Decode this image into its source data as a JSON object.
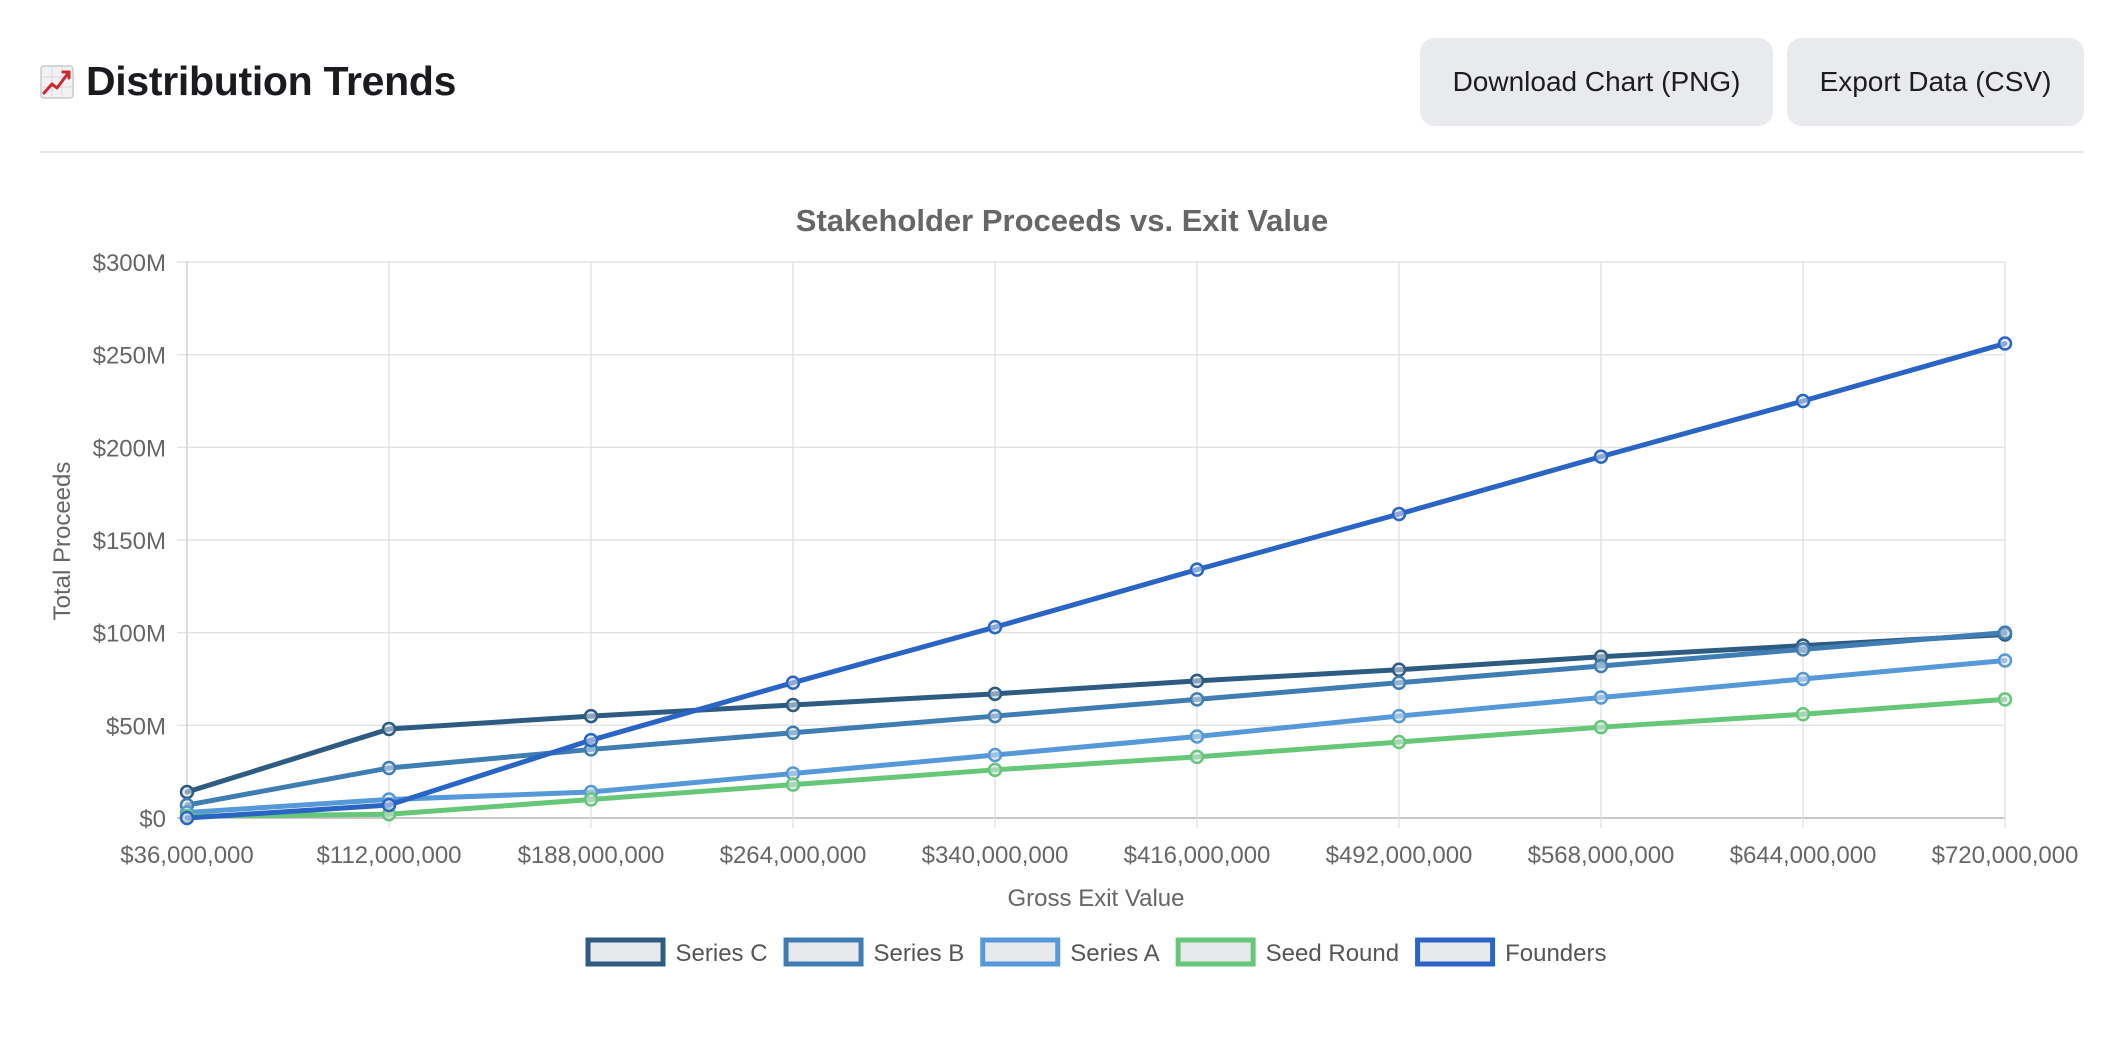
{
  "header": {
    "title": "Distribution Trends",
    "download_png_label": "Download Chart (PNG)",
    "export_csv_label": "Export Data (CSV)"
  },
  "icons": {
    "title_icon": "chart-increasing-icon"
  },
  "colors": {
    "series_c": "#2d5b82",
    "series_b": "#3f7db3",
    "series_a": "#5599d8",
    "seed_round": "#66c779",
    "founders": "#2a64c5",
    "button_bg": "#e9eaee",
    "grid": "#dedede"
  },
  "chart_data": {
    "type": "line",
    "title": "Stakeholder Proceeds vs. Exit Value",
    "xlabel": "Gross Exit Value",
    "ylabel": "Total Proceeds",
    "x": [
      36000000,
      112000000,
      188000000,
      264000000,
      340000000,
      416000000,
      492000000,
      568000000,
      644000000,
      720000000
    ],
    "x_tick_labels": [
      "$36,000,000",
      "$112,000,000",
      "$188,000,000",
      "$264,000,000",
      "$340,000,000",
      "$416,000,000",
      "$492,000,000",
      "$568,000,000",
      "$644,000,000",
      "$720,000,000"
    ],
    "ylim": [
      0,
      300
    ],
    "y_unit": "millions USD",
    "y_tick_values": [
      0,
      50,
      100,
      150,
      200,
      250,
      300
    ],
    "y_tick_labels": [
      "$0",
      "$50M",
      "$100M",
      "$150M",
      "$200M",
      "$250M",
      "$300M"
    ],
    "grid": true,
    "legend_position": "bottom",
    "series": [
      {
        "name": "Series C",
        "color": "#2d5b82",
        "values": [
          14,
          48,
          55,
          61,
          67,
          74,
          80,
          87,
          93,
          99
        ]
      },
      {
        "name": "Series B",
        "color": "#3f7db3",
        "values": [
          7,
          27,
          37,
          46,
          55,
          64,
          73,
          82,
          91,
          100
        ]
      },
      {
        "name": "Series A",
        "color": "#5599d8",
        "values": [
          3,
          10,
          14,
          24,
          34,
          44,
          55,
          65,
          75,
          85
        ]
      },
      {
        "name": "Seed Round",
        "color": "#66c779",
        "values": [
          1,
          2,
          10,
          18,
          26,
          33,
          41,
          49,
          56,
          64
        ]
      },
      {
        "name": "Founders",
        "color": "#2a64c5",
        "values": [
          0,
          7,
          42,
          73,
          103,
          134,
          164,
          195,
          225,
          256
        ]
      }
    ]
  }
}
